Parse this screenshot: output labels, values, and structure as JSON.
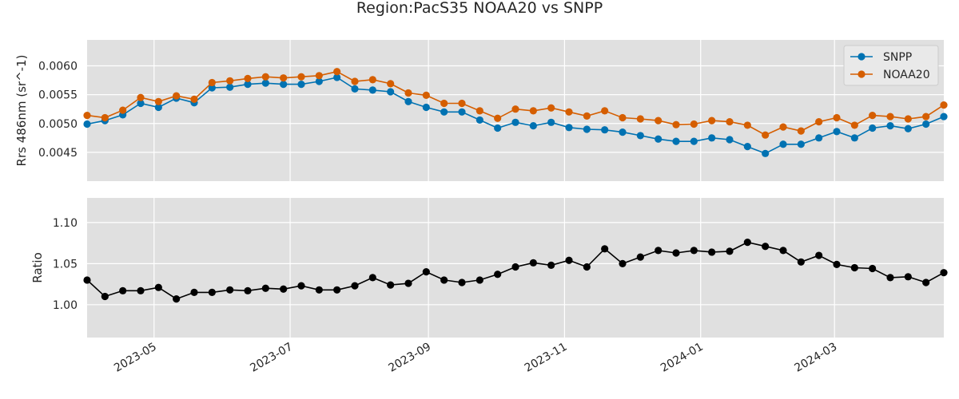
{
  "chart_data": {
    "type": "line",
    "title": "Region:PacS35 NOAA20 vs SNPP",
    "x": [
      "2023-04-01",
      "2023-04-09",
      "2023-04-17",
      "2023-04-25",
      "2023-05-03",
      "2023-05-11",
      "2023-05-19",
      "2023-05-27",
      "2023-06-04",
      "2023-06-12",
      "2023-06-20",
      "2023-06-28",
      "2023-07-06",
      "2023-07-14",
      "2023-07-22",
      "2023-07-30",
      "2023-08-07",
      "2023-08-15",
      "2023-08-23",
      "2023-08-31",
      "2023-09-08",
      "2023-09-16",
      "2023-09-24",
      "2023-10-02",
      "2023-10-10",
      "2023-10-18",
      "2023-10-26",
      "2023-11-03",
      "2023-11-11",
      "2023-11-19",
      "2023-11-27",
      "2023-12-05",
      "2023-12-13",
      "2023-12-21",
      "2023-12-29",
      "2024-01-06",
      "2024-01-14",
      "2024-01-22",
      "2024-01-30",
      "2024-02-07",
      "2024-02-15",
      "2024-02-23",
      "2024-03-02",
      "2024-03-10",
      "2024-03-18",
      "2024-03-26",
      "2024-04-03",
      "2024-04-11",
      "2024-04-19"
    ],
    "x_tick_labels": [
      "2023-05",
      "2023-07",
      "2023-09",
      "2023-11",
      "2024-01",
      "2024-03"
    ],
    "x_tick_dates": [
      "2023-05-01",
      "2023-07-01",
      "2023-09-01",
      "2023-11-01",
      "2024-01-01",
      "2024-03-01"
    ],
    "xlim": [
      "2023-04-01",
      "2024-04-19"
    ],
    "panels": [
      {
        "ylabel": "Rrs 486nm (sr^-1)",
        "ylim": [
          0.004,
          0.00645
        ],
        "y_ticks": [
          0.0045,
          0.005,
          0.0055,
          0.006
        ],
        "y_tick_labels": [
          "0.0045",
          "0.0050",
          "0.0055",
          "0.0060"
        ],
        "legend": "top-right",
        "series": [
          {
            "name": "SNPP",
            "color": "#0072B2",
            "values": [
              0.00499,
              0.00505,
              0.00515,
              0.00535,
              0.00528,
              0.00544,
              0.00536,
              0.00562,
              0.00563,
              0.00568,
              0.0057,
              0.00568,
              0.00568,
              0.00573,
              0.0058,
              0.0056,
              0.00558,
              0.00555,
              0.00538,
              0.00528,
              0.0052,
              0.0052,
              0.00506,
              0.00492,
              0.00502,
              0.00496,
              0.00502,
              0.00493,
              0.0049,
              0.00489,
              0.00485,
              0.00479,
              0.00473,
              0.00469,
              0.00469,
              0.00475,
              0.00472,
              0.0046,
              0.00448,
              0.00464,
              0.00464,
              0.00475,
              0.00486,
              0.00475,
              0.00492,
              0.00496,
              0.00491,
              0.00499,
              0.00512
            ]
          },
          {
            "name": "NOAA20",
            "color": "#D55E00",
            "values": [
              0.00514,
              0.0051,
              0.00523,
              0.00545,
              0.00538,
              0.00548,
              0.00542,
              0.00571,
              0.00574,
              0.00578,
              0.00581,
              0.00579,
              0.00581,
              0.00583,
              0.0059,
              0.00573,
              0.00576,
              0.00569,
              0.00553,
              0.00549,
              0.00535,
              0.00535,
              0.00522,
              0.00509,
              0.00525,
              0.00522,
              0.00527,
              0.0052,
              0.00513,
              0.00522,
              0.0051,
              0.00508,
              0.00505,
              0.00498,
              0.00499,
              0.00505,
              0.00503,
              0.00497,
              0.0048,
              0.00494,
              0.00487,
              0.00503,
              0.0051,
              0.00497,
              0.00514,
              0.00512,
              0.00508,
              0.00512,
              0.00532
            ]
          }
        ]
      },
      {
        "ylabel": "Ratio",
        "ylim": [
          0.96,
          1.13
        ],
        "y_ticks": [
          1.0,
          1.05,
          1.1
        ],
        "y_tick_labels": [
          "1.00",
          "1.05",
          "1.10"
        ],
        "series": [
          {
            "name": "",
            "color": "#000000",
            "values": [
              1.03,
              1.01,
              1.017,
              1.017,
              1.021,
              1.007,
              1.015,
              1.015,
              1.018,
              1.017,
              1.02,
              1.019,
              1.023,
              1.018,
              1.018,
              1.023,
              1.033,
              1.024,
              1.026,
              1.04,
              1.03,
              1.027,
              1.03,
              1.037,
              1.046,
              1.051,
              1.048,
              1.054,
              1.046,
              1.068,
              1.05,
              1.058,
              1.066,
              1.063,
              1.066,
              1.064,
              1.065,
              1.076,
              1.071,
              1.066,
              1.052,
              1.06,
              1.049,
              1.045,
              1.044,
              1.033,
              1.034,
              1.027,
              1.039
            ]
          }
        ]
      }
    ],
    "grid": true
  }
}
